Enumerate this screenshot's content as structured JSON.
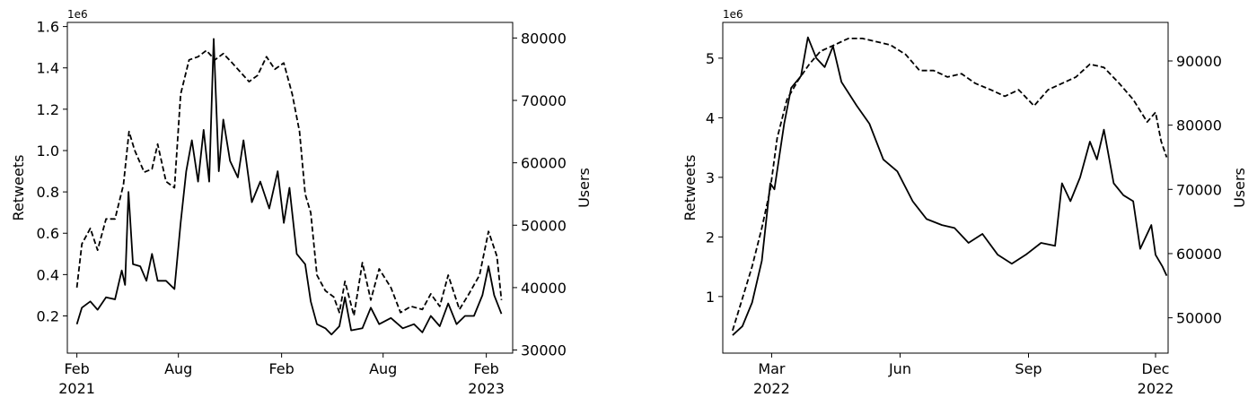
{
  "chart_data": [
    {
      "type": "line",
      "multiplier_label": "1e6",
      "ylabel": "Retweets",
      "y2label": "Users",
      "xlim": [
        "2021-01-15",
        "2023-03-20"
      ],
      "ylim": [
        0.02,
        1.62
      ],
      "y2lim": [
        29500,
        82500
      ],
      "x_ticks": [
        {
          "date": "2021-02-01",
          "label": "Feb",
          "year": "2021"
        },
        {
          "date": "2021-08-01",
          "label": "Aug",
          "year": ""
        },
        {
          "date": "2022-02-01",
          "label": "Feb",
          "year": ""
        },
        {
          "date": "2022-08-01",
          "label": "Aug",
          "year": ""
        },
        {
          "date": "2023-02-01",
          "label": "Feb",
          "year": "2023"
        }
      ],
      "y_ticks": [
        "0.2",
        "0.4",
        "0.6",
        "0.8",
        "1.0",
        "1.2",
        "1.4",
        "1.6"
      ],
      "y2_ticks": [
        "30000",
        "40000",
        "50000",
        "60000",
        "70000",
        "80000"
      ],
      "series": [
        {
          "axis": "left",
          "style": "solid",
          "points": [
            [
              "2021-02-01",
              0.16
            ],
            [
              "2021-02-10",
              0.24
            ],
            [
              "2021-02-25",
              0.27
            ],
            [
              "2021-03-10",
              0.23
            ],
            [
              "2021-03-25",
              0.29
            ],
            [
              "2021-04-10",
              0.28
            ],
            [
              "2021-04-22",
              0.42
            ],
            [
              "2021-04-28",
              0.35
            ],
            [
              "2021-05-04",
              0.8
            ],
            [
              "2021-05-12",
              0.45
            ],
            [
              "2021-05-25",
              0.44
            ],
            [
              "2021-06-05",
              0.37
            ],
            [
              "2021-06-15",
              0.5
            ],
            [
              "2021-06-25",
              0.37
            ],
            [
              "2021-07-10",
              0.37
            ],
            [
              "2021-07-25",
              0.33
            ],
            [
              "2021-08-05",
              0.65
            ],
            [
              "2021-08-15",
              0.9
            ],
            [
              "2021-08-25",
              1.05
            ],
            [
              "2021-09-05",
              0.85
            ],
            [
              "2021-09-15",
              1.1
            ],
            [
              "2021-09-25",
              0.85
            ],
            [
              "2021-10-03",
              1.54
            ],
            [
              "2021-10-12",
              0.9
            ],
            [
              "2021-10-20",
              1.15
            ],
            [
              "2021-11-01",
              0.95
            ],
            [
              "2021-11-15",
              0.87
            ],
            [
              "2021-11-25",
              1.05
            ],
            [
              "2021-12-10",
              0.75
            ],
            [
              "2021-12-25",
              0.85
            ],
            [
              "2022-01-10",
              0.72
            ],
            [
              "2022-01-25",
              0.9
            ],
            [
              "2022-02-05",
              0.65
            ],
            [
              "2022-02-15",
              0.82
            ],
            [
              "2022-02-28",
              0.5
            ],
            [
              "2022-03-15",
              0.45
            ],
            [
              "2022-03-25",
              0.27
            ],
            [
              "2022-04-05",
              0.16
            ],
            [
              "2022-04-20",
              0.14
            ],
            [
              "2022-05-01",
              0.11
            ],
            [
              "2022-05-15",
              0.15
            ],
            [
              "2022-05-25",
              0.29
            ],
            [
              "2022-06-05",
              0.13
            ],
            [
              "2022-06-25",
              0.14
            ],
            [
              "2022-07-10",
              0.24
            ],
            [
              "2022-07-25",
              0.16
            ],
            [
              "2022-08-15",
              0.19
            ],
            [
              "2022-09-05",
              0.14
            ],
            [
              "2022-09-25",
              0.16
            ],
            [
              "2022-10-10",
              0.12
            ],
            [
              "2022-10-25",
              0.2
            ],
            [
              "2022-11-10",
              0.15
            ],
            [
              "2022-11-25",
              0.26
            ],
            [
              "2022-12-10",
              0.16
            ],
            [
              "2022-12-25",
              0.2
            ],
            [
              "2023-01-10",
              0.2
            ],
            [
              "2023-01-25",
              0.3
            ],
            [
              "2023-02-05",
              0.44
            ],
            [
              "2023-02-15",
              0.3
            ],
            [
              "2023-02-28",
              0.21
            ]
          ]
        },
        {
          "axis": "right",
          "style": "dashed",
          "points": [
            [
              "2021-02-01",
              40000
            ],
            [
              "2021-02-10",
              47000
            ],
            [
              "2021-02-25",
              49500
            ],
            [
              "2021-03-10",
              46000
            ],
            [
              "2021-03-25",
              51000
            ],
            [
              "2021-04-10",
              51000
            ],
            [
              "2021-04-25",
              56500
            ],
            [
              "2021-05-05",
              65000
            ],
            [
              "2021-05-15",
              62000
            ],
            [
              "2021-06-01",
              58500
            ],
            [
              "2021-06-15",
              59000
            ],
            [
              "2021-06-25",
              63000
            ],
            [
              "2021-07-10",
              57000
            ],
            [
              "2021-07-25",
              56000
            ],
            [
              "2021-08-05",
              71000
            ],
            [
              "2021-08-20",
              76500
            ],
            [
              "2021-09-05",
              77000
            ],
            [
              "2021-09-20",
              78000
            ],
            [
              "2021-10-05",
              76500
            ],
            [
              "2021-10-20",
              77500
            ],
            [
              "2021-11-05",
              76000
            ],
            [
              "2021-11-20",
              74500
            ],
            [
              "2021-12-05",
              73000
            ],
            [
              "2021-12-20",
              74000
            ],
            [
              "2022-01-05",
              77000
            ],
            [
              "2022-01-20",
              75000
            ],
            [
              "2022-02-05",
              76000
            ],
            [
              "2022-02-20",
              71000
            ],
            [
              "2022-03-05",
              65000
            ],
            [
              "2022-03-15",
              55000
            ],
            [
              "2022-03-25",
              52000
            ],
            [
              "2022-04-05",
              42000
            ],
            [
              "2022-04-20",
              39500
            ],
            [
              "2022-05-05",
              38500
            ],
            [
              "2022-05-15",
              36000
            ],
            [
              "2022-05-25",
              41000
            ],
            [
              "2022-06-10",
              35500
            ],
            [
              "2022-06-25",
              44000
            ],
            [
              "2022-07-10",
              38000
            ],
            [
              "2022-07-25",
              43000
            ],
            [
              "2022-08-15",
              40000
            ],
            [
              "2022-09-01",
              36000
            ],
            [
              "2022-09-20",
              37000
            ],
            [
              "2022-10-10",
              36500
            ],
            [
              "2022-10-25",
              39000
            ],
            [
              "2022-11-10",
              37000
            ],
            [
              "2022-11-25",
              42000
            ],
            [
              "2022-12-15",
              36500
            ],
            [
              "2023-01-01",
              39000
            ],
            [
              "2023-01-20",
              42000
            ],
            [
              "2023-02-05",
              49000
            ],
            [
              "2023-02-20",
              45000
            ],
            [
              "2023-02-28",
              38000
            ]
          ]
        }
      ]
    },
    {
      "type": "line",
      "multiplier_label": "1e6",
      "ylabel": "Retweets",
      "y2label": "Users",
      "xlim": [
        "2022-01-25",
        "2022-12-10"
      ],
      "ylim": [
        0.05,
        5.6
      ],
      "y2lim": [
        44500,
        96000
      ],
      "x_ticks": [
        {
          "date": "2022-03-01",
          "label": "Mar",
          "year": "2022"
        },
        {
          "date": "2022-06-01",
          "label": "Jun",
          "year": ""
        },
        {
          "date": "2022-09-01",
          "label": "Sep",
          "year": ""
        },
        {
          "date": "2022-12-01",
          "label": "Dec",
          "year": "2022"
        }
      ],
      "y_ticks": [
        "1",
        "2",
        "3",
        "4",
        "5"
      ],
      "y2_ticks": [
        "50000",
        "60000",
        "70000",
        "80000",
        "90000"
      ],
      "series": [
        {
          "axis": "left",
          "style": "solid",
          "points": [
            [
              "2022-02-01",
              0.35
            ],
            [
              "2022-02-08",
              0.5
            ],
            [
              "2022-02-15",
              0.9
            ],
            [
              "2022-02-22",
              1.6
            ],
            [
              "2022-02-28",
              2.9
            ],
            [
              "2022-03-03",
              2.8
            ],
            [
              "2022-03-10",
              3.9
            ],
            [
              "2022-03-15",
              4.5
            ],
            [
              "2022-03-22",
              4.7
            ],
            [
              "2022-03-27",
              5.35
            ],
            [
              "2022-04-02",
              5.0
            ],
            [
              "2022-04-08",
              4.85
            ],
            [
              "2022-04-14",
              5.2
            ],
            [
              "2022-04-20",
              4.6
            ],
            [
              "2022-05-01",
              4.2
            ],
            [
              "2022-05-10",
              3.9
            ],
            [
              "2022-05-20",
              3.3
            ],
            [
              "2022-05-30",
              3.1
            ],
            [
              "2022-06-10",
              2.6
            ],
            [
              "2022-06-20",
              2.3
            ],
            [
              "2022-07-01",
              2.2
            ],
            [
              "2022-07-10",
              2.15
            ],
            [
              "2022-07-20",
              1.9
            ],
            [
              "2022-07-30",
              2.05
            ],
            [
              "2022-08-10",
              1.7
            ],
            [
              "2022-08-20",
              1.55
            ],
            [
              "2022-08-30",
              1.7
            ],
            [
              "2022-09-10",
              1.9
            ],
            [
              "2022-09-20",
              1.85
            ],
            [
              "2022-09-25",
              2.9
            ],
            [
              "2022-10-01",
              2.6
            ],
            [
              "2022-10-08",
              3.0
            ],
            [
              "2022-10-15",
              3.6
            ],
            [
              "2022-10-20",
              3.3
            ],
            [
              "2022-10-25",
              3.8
            ],
            [
              "2022-11-01",
              2.9
            ],
            [
              "2022-11-08",
              2.7
            ],
            [
              "2022-11-15",
              2.6
            ],
            [
              "2022-11-20",
              1.8
            ],
            [
              "2022-11-28",
              2.2
            ],
            [
              "2022-12-01",
              1.7
            ],
            [
              "2022-12-06",
              1.5
            ],
            [
              "2022-12-09",
              1.35
            ]
          ]
        },
        {
          "axis": "right",
          "style": "dashed",
          "points": [
            [
              "2022-02-01",
              48000
            ],
            [
              "2022-02-08",
              53000
            ],
            [
              "2022-02-15",
              58000
            ],
            [
              "2022-02-22",
              64000
            ],
            [
              "2022-02-28",
              70000
            ],
            [
              "2022-03-05",
              78000
            ],
            [
              "2022-03-12",
              84000
            ],
            [
              "2022-03-20",
              87000
            ],
            [
              "2022-03-28",
              89500
            ],
            [
              "2022-04-05",
              91500
            ],
            [
              "2022-04-15",
              92500
            ],
            [
              "2022-04-25",
              93500
            ],
            [
              "2022-05-05",
              93500
            ],
            [
              "2022-05-15",
              93000
            ],
            [
              "2022-05-25",
              92500
            ],
            [
              "2022-06-05",
              91000
            ],
            [
              "2022-06-15",
              88500
            ],
            [
              "2022-06-25",
              88500
            ],
            [
              "2022-07-05",
              87500
            ],
            [
              "2022-07-15",
              88000
            ],
            [
              "2022-07-25",
              86500
            ],
            [
              "2022-08-05",
              85500
            ],
            [
              "2022-08-15",
              84500
            ],
            [
              "2022-08-25",
              85500
            ],
            [
              "2022-09-05",
              83000
            ],
            [
              "2022-09-15",
              85500
            ],
            [
              "2022-09-25",
              86500
            ],
            [
              "2022-10-05",
              87500
            ],
            [
              "2022-10-15",
              89500
            ],
            [
              "2022-10-25",
              89000
            ],
            [
              "2022-11-05",
              86500
            ],
            [
              "2022-11-15",
              84000
            ],
            [
              "2022-11-25",
              80500
            ],
            [
              "2022-12-01",
              82000
            ],
            [
              "2022-12-05",
              77500
            ],
            [
              "2022-12-09",
              75000
            ]
          ]
        }
      ]
    }
  ]
}
